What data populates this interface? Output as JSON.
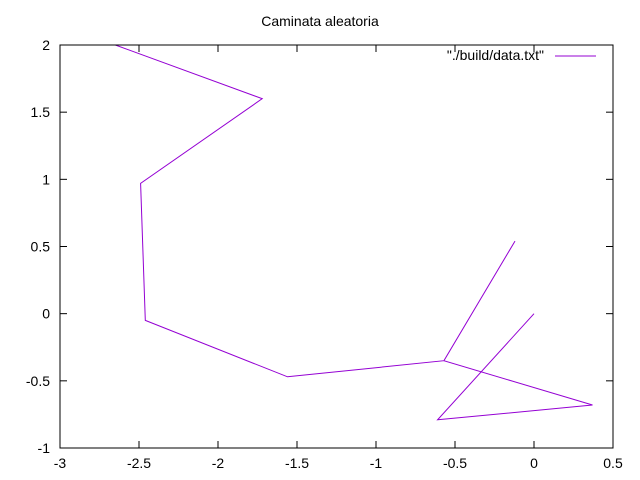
{
  "chart_data": {
    "type": "line",
    "title": "Caminata aleatoria",
    "xlabel": "",
    "ylabel": "",
    "xlim": [
      -3,
      0.5
    ],
    "ylim": [
      -1,
      2
    ],
    "xticks": [
      -3,
      -2.5,
      -2,
      -1.5,
      -1,
      -0.5,
      0,
      0.5
    ],
    "yticks": [
      -1,
      -0.5,
      0,
      0.5,
      1,
      1.5,
      2
    ],
    "xtick_labels": [
      "-3",
      "-2.5",
      "-2",
      "-1.5",
      "-1",
      "-0.5",
      "0",
      "0.5"
    ],
    "ytick_labels": [
      "-1",
      "-0.5",
      "0",
      "0.5",
      "1",
      "1.5",
      "2"
    ],
    "grid": false,
    "legend_position": "top-right",
    "series": [
      {
        "name": "\"./build/data.txt\"",
        "color": "#9400d3",
        "x": [
          0,
          -0.61,
          0.37,
          -0.57,
          -0.12,
          -0.57,
          -1.56,
          -2.46,
          -2.49,
          -1.72,
          -2.65
        ],
        "y": [
          0,
          -0.79,
          -0.68,
          -0.35,
          0.54,
          -0.35,
          -0.47,
          -0.05,
          0.97,
          1.6,
          2.0
        ]
      }
    ]
  }
}
